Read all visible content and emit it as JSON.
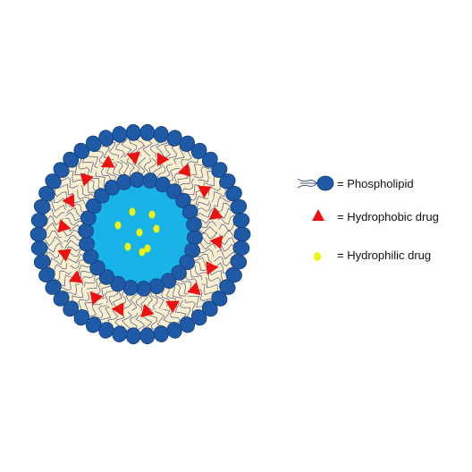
{
  "legend": {
    "phospholipid": "= Phospholipid",
    "hydrophobic": "= Hydrophobic drug",
    "hydrophilic": "= Hydrophilic drug"
  },
  "colors": {
    "head": "#1f5aa6",
    "head_edge": "#143d75",
    "bilayer": "#fcefcf",
    "core": "#19b3ea",
    "hydrophobic_drug": "#ee1111",
    "hydrophilic_drug": "#f2f20a",
    "tail": "#4a5a86"
  },
  "icons": {
    "phospholipid": "phospholipid-icon",
    "hydrophobic": "red-triangle-icon",
    "hydrophilic": "yellow-dot-icon"
  }
}
